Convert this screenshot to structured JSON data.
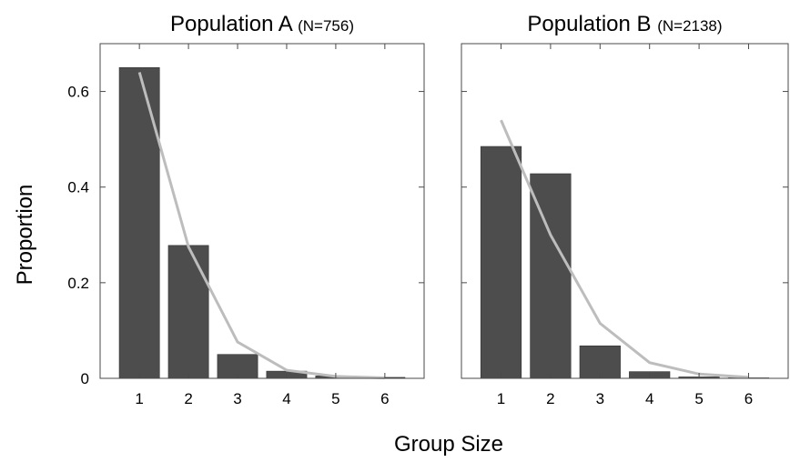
{
  "figure": {
    "xlabel": "Group Size",
    "ylabel": "Proportion"
  },
  "colors": {
    "bar": "#4d4d4d",
    "fit_line": "#bdbdbd"
  },
  "chart_data": [
    {
      "type": "bar",
      "title": "Population A",
      "subtitle": "(N=756)",
      "xlabel": "Group Size",
      "ylabel": "Proportion",
      "categories": [
        "1",
        "2",
        "3",
        "4",
        "5",
        "6"
      ],
      "x": [
        1,
        2,
        3,
        4,
        5,
        6
      ],
      "values": [
        0.65,
        0.278,
        0.05,
        0.015,
        0.005,
        0.002
      ],
      "fit_line": [
        0.64,
        0.275,
        0.076,
        0.017,
        0.004,
        0.001
      ],
      "xlim": [
        0.2,
        6.8
      ],
      "ylim": [
        0,
        0.7
      ],
      "yticks": [
        0,
        0.2,
        0.4,
        0.6
      ],
      "ytick_labels": [
        "0",
        "0.2",
        "0.4",
        "0.6"
      ],
      "grid": false,
      "legend": "none"
    },
    {
      "type": "bar",
      "title": "Population B",
      "subtitle": "(N=2138)",
      "xlabel": "Group Size",
      "ylabel": "Proportion",
      "categories": [
        "1",
        "2",
        "3",
        "4",
        "5",
        "6"
      ],
      "x": [
        1,
        2,
        3,
        4,
        5,
        6
      ],
      "values": [
        0.485,
        0.428,
        0.068,
        0.014,
        0.003,
        0.001
      ],
      "fit_line": [
        0.54,
        0.3,
        0.115,
        0.033,
        0.009,
        0.002
      ],
      "xlim": [
        0.2,
        6.8
      ],
      "ylim": [
        0,
        0.7
      ],
      "yticks": [
        0,
        0.2,
        0.4,
        0.6
      ],
      "ytick_labels": [
        "",
        "",
        "",
        ""
      ],
      "grid": false,
      "legend": "none"
    }
  ]
}
